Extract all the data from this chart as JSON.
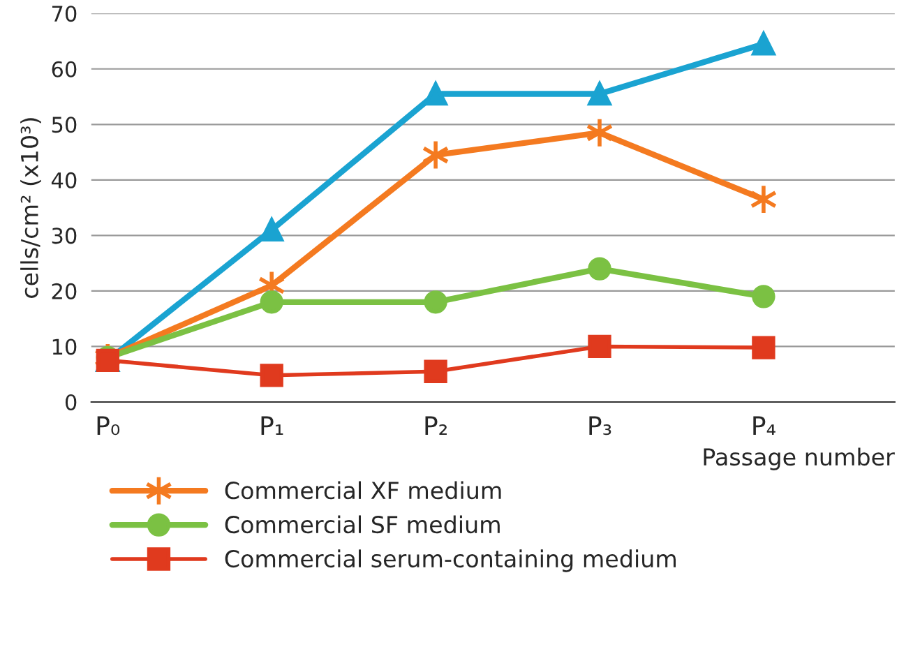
{
  "chart_data": {
    "type": "line",
    "ylabel": "cells/cm² (x10³)",
    "xlabel": "Passage number",
    "categories": [
      "P₀",
      "P₁",
      "P₂",
      "P₃",
      "P₄"
    ],
    "series": [
      {
        "color": "#1aa3d1",
        "marker": "triangle",
        "values": [
          7.5,
          31,
          55.5,
          55.5,
          64.5
        ]
      },
      {
        "name": "Commercial XF medium",
        "color": "#f47a20",
        "marker": "cross",
        "values": [
          8,
          21,
          44.5,
          48.5,
          36.5
        ]
      },
      {
        "name": "Commercial SF medium",
        "color": "#7bc143",
        "marker": "circle",
        "values": [
          8,
          18,
          18,
          24,
          19
        ]
      },
      {
        "name": "Commercial serum-containing medium",
        "color": "#e03a1e",
        "marker": "square",
        "values": [
          7.5,
          4.8,
          5.5,
          10,
          9.8
        ]
      }
    ],
    "ylim": [
      0,
      70
    ],
    "yticks": [
      0,
      10,
      20,
      30,
      40,
      50,
      60,
      70
    ],
    "grid": "y",
    "legend": "bottom",
    "line_style": "solid"
  }
}
